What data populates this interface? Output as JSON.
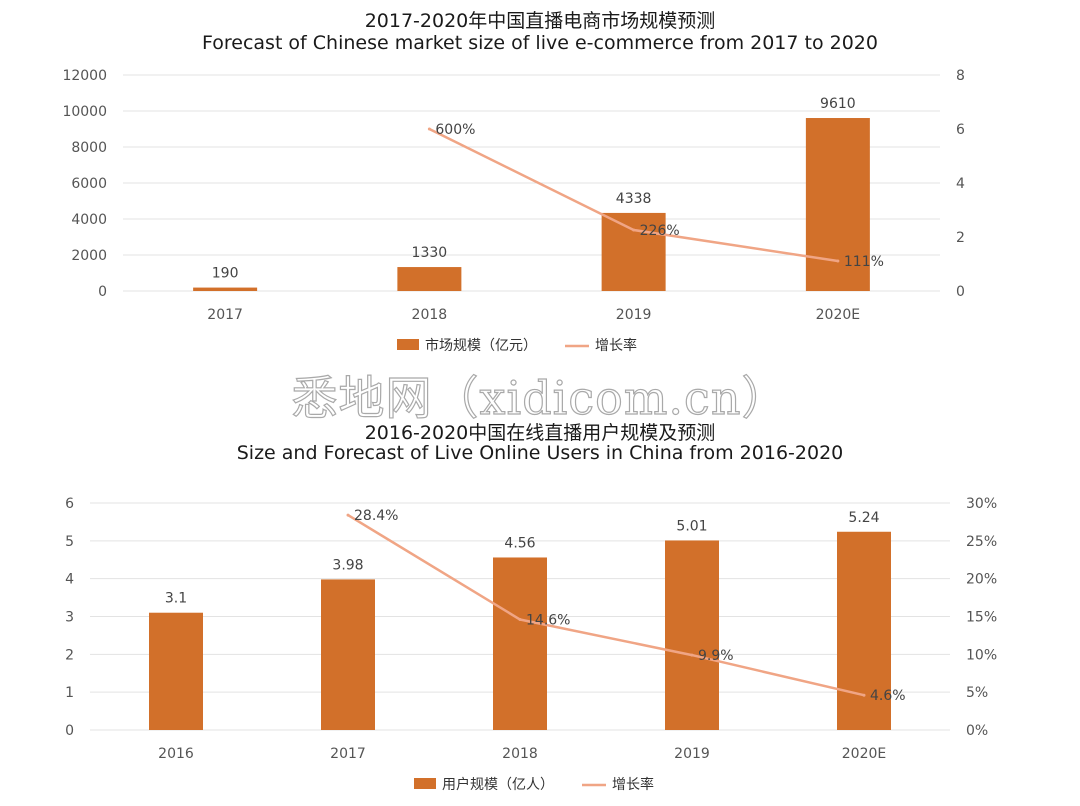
{
  "watermark": "悉地网（xidicom.cn）",
  "chart_data": [
    {
      "type": "bar",
      "title": "2017-2020年中国直播电商市场规模预测",
      "subtitle": "Forecast of Chinese market size of live e-commerce from 2017 to 2020",
      "categories": [
        "2017",
        "2018",
        "2019",
        "2020E"
      ],
      "series": [
        {
          "name": "市场规模（亿元）",
          "type": "bar",
          "axis": "left",
          "color": "#D2702A",
          "values": [
            190,
            1330,
            4338,
            9610
          ],
          "labels": [
            "190",
            "1330",
            "4338",
            "9610"
          ]
        },
        {
          "name": "增长率",
          "type": "line",
          "axis": "right",
          "color": "#F0A585",
          "values": [
            null,
            6.0,
            2.26,
            1.11
          ],
          "labels": [
            "",
            "600%",
            "226%",
            "111%"
          ]
        }
      ],
      "ylim": [
        0,
        12000
      ],
      "yticks": [
        "0",
        "2000",
        "4000",
        "6000",
        "8000",
        "10000",
        "12000"
      ],
      "y2lim": [
        0,
        8
      ],
      "y2ticks": [
        "0",
        "2",
        "4",
        "6",
        "8"
      ],
      "grid": true,
      "legend_position": "bottom"
    },
    {
      "type": "bar",
      "title": "2016-2020中国在线直播用户规模及预测",
      "subtitle": "Size and Forecast of Live Online Users in China from 2016-2020",
      "categories": [
        "2016",
        "2017",
        "2018",
        "2019",
        "2020E"
      ],
      "series": [
        {
          "name": "用户规模（亿人）",
          "type": "bar",
          "axis": "left",
          "color": "#D2702A",
          "values": [
            3.1,
            3.98,
            4.56,
            5.01,
            5.24
          ],
          "labels": [
            "3.1",
            "3.98",
            "4.56",
            "5.01",
            "5.24"
          ]
        },
        {
          "name": "增长率",
          "type": "line",
          "axis": "right",
          "color": "#F0A585",
          "values": [
            null,
            28.4,
            14.6,
            9.9,
            4.6
          ],
          "labels": [
            "",
            "28.4%",
            "14.6%",
            "9.9%",
            "4.6%"
          ]
        }
      ],
      "ylim": [
        0,
        6
      ],
      "yticks": [
        "0",
        "1",
        "2",
        "3",
        "4",
        "5",
        "6"
      ],
      "y2lim": [
        0,
        30
      ],
      "y2ticks": [
        "0%",
        "5%",
        "10%",
        "15%",
        "20%",
        "25%",
        "30%"
      ],
      "grid": true,
      "legend_position": "bottom"
    }
  ]
}
